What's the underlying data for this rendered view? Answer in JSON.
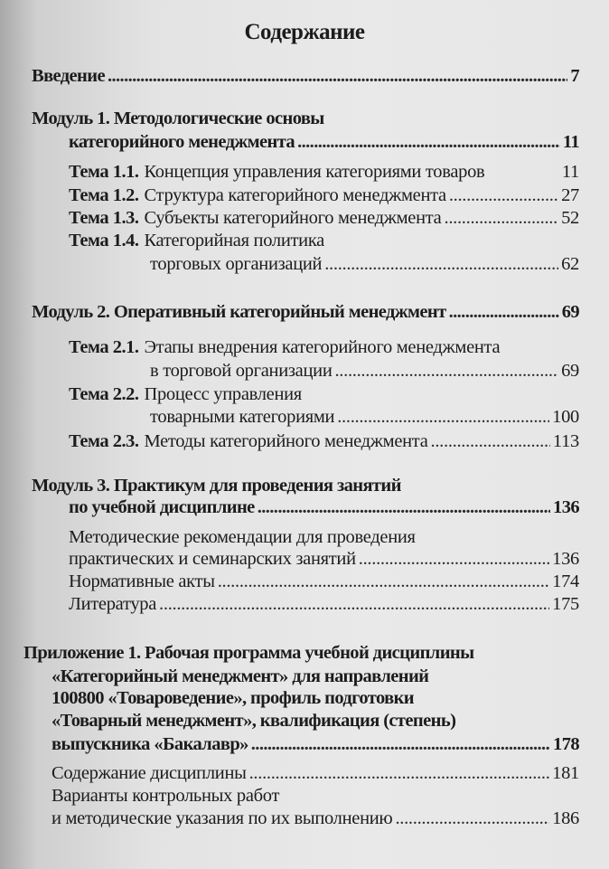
{
  "title": "Содержание",
  "intro": {
    "text": "Введение",
    "page": "7"
  },
  "module1": {
    "line1": "Модуль 1. Методологические основы",
    "line2": "категорийного менеджмента",
    "page": "11",
    "topics": [
      {
        "label": "Тема 1.1.",
        "text": "Концепция управления категориями товаров",
        "page": "11"
      },
      {
        "label": "Тема 1.2.",
        "text": "Структура категорийного менеджмента",
        "page": "27"
      },
      {
        "label": "Тема 1.3.",
        "text": "Субъекты категорийного менеджмента",
        "page": "52"
      },
      {
        "label": "Тема 1.4.",
        "text": "Категорийная политика",
        "text2": "торговых организаций",
        "page": "62"
      }
    ]
  },
  "module2": {
    "line1": "Модуль 2. Оперативный категорийный менеджмент",
    "page": "69",
    "topics": [
      {
        "label": "Тема 2.1.",
        "text": "Этапы внедрения категорийного менеджмента",
        "text2": "в торговой организации",
        "page": "69"
      },
      {
        "label": "Тема 2.2.",
        "text": "Процесс управления",
        "text2": "товарными категориями",
        "page": "100"
      },
      {
        "label": "Тема 2.3.",
        "text": "Методы категорийного менеджмента",
        "page": "113"
      }
    ]
  },
  "module3": {
    "line1": "Модуль 3. Практикум для проведения занятий",
    "line2": "по учебной дисциплине",
    "page": "136",
    "items": [
      {
        "text": "Методические рекомендации для проведения",
        "text2": "практических и семинарских занятий",
        "page": "136"
      },
      {
        "text": "Нормативные акты",
        "page": "174"
      },
      {
        "text": "Литература",
        "page": "175"
      }
    ]
  },
  "appendix1": {
    "lines": [
      "Приложение 1. Рабочая программа учебной дисциплины",
      "«Категорийный менеджмент» для направлений",
      "100800 «Товароведение», профиль подготовки",
      "«Товарный менеджмент», квалификация (степень)",
      "выпускника «Бакалавр»"
    ],
    "page": "178",
    "items": [
      {
        "text": "Содержание дисциплины",
        "page": "181"
      },
      {
        "text": "Варианты контрольных работ",
        "text2": "и методические указания по их выполнению",
        "page": "186"
      }
    ]
  }
}
